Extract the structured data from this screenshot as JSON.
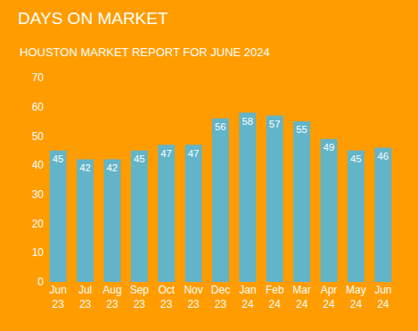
{
  "chart_data": {
    "type": "bar",
    "title": "DAYS ON MARKET",
    "subtitle": "HOUSTON MARKET REPORT FOR JUNE 2024",
    "categories": [
      "Jun 23",
      "Jul 23",
      "Aug 23",
      "Sep 23",
      "Oct 23",
      "Nov 23",
      "Dec 23",
      "Jan 24",
      "Feb 24",
      "Mar 24",
      "Apr 24",
      "May 24",
      "Jun 24"
    ],
    "values": [
      45,
      42,
      42,
      45,
      47,
      47,
      56,
      58,
      57,
      55,
      49,
      45,
      46
    ],
    "color": "#62b4c9",
    "ylim": [
      0,
      70
    ],
    "yticks": [
      0,
      10,
      20,
      30,
      40,
      50,
      60,
      70
    ],
    "grid": false,
    "data_labels": true
  }
}
